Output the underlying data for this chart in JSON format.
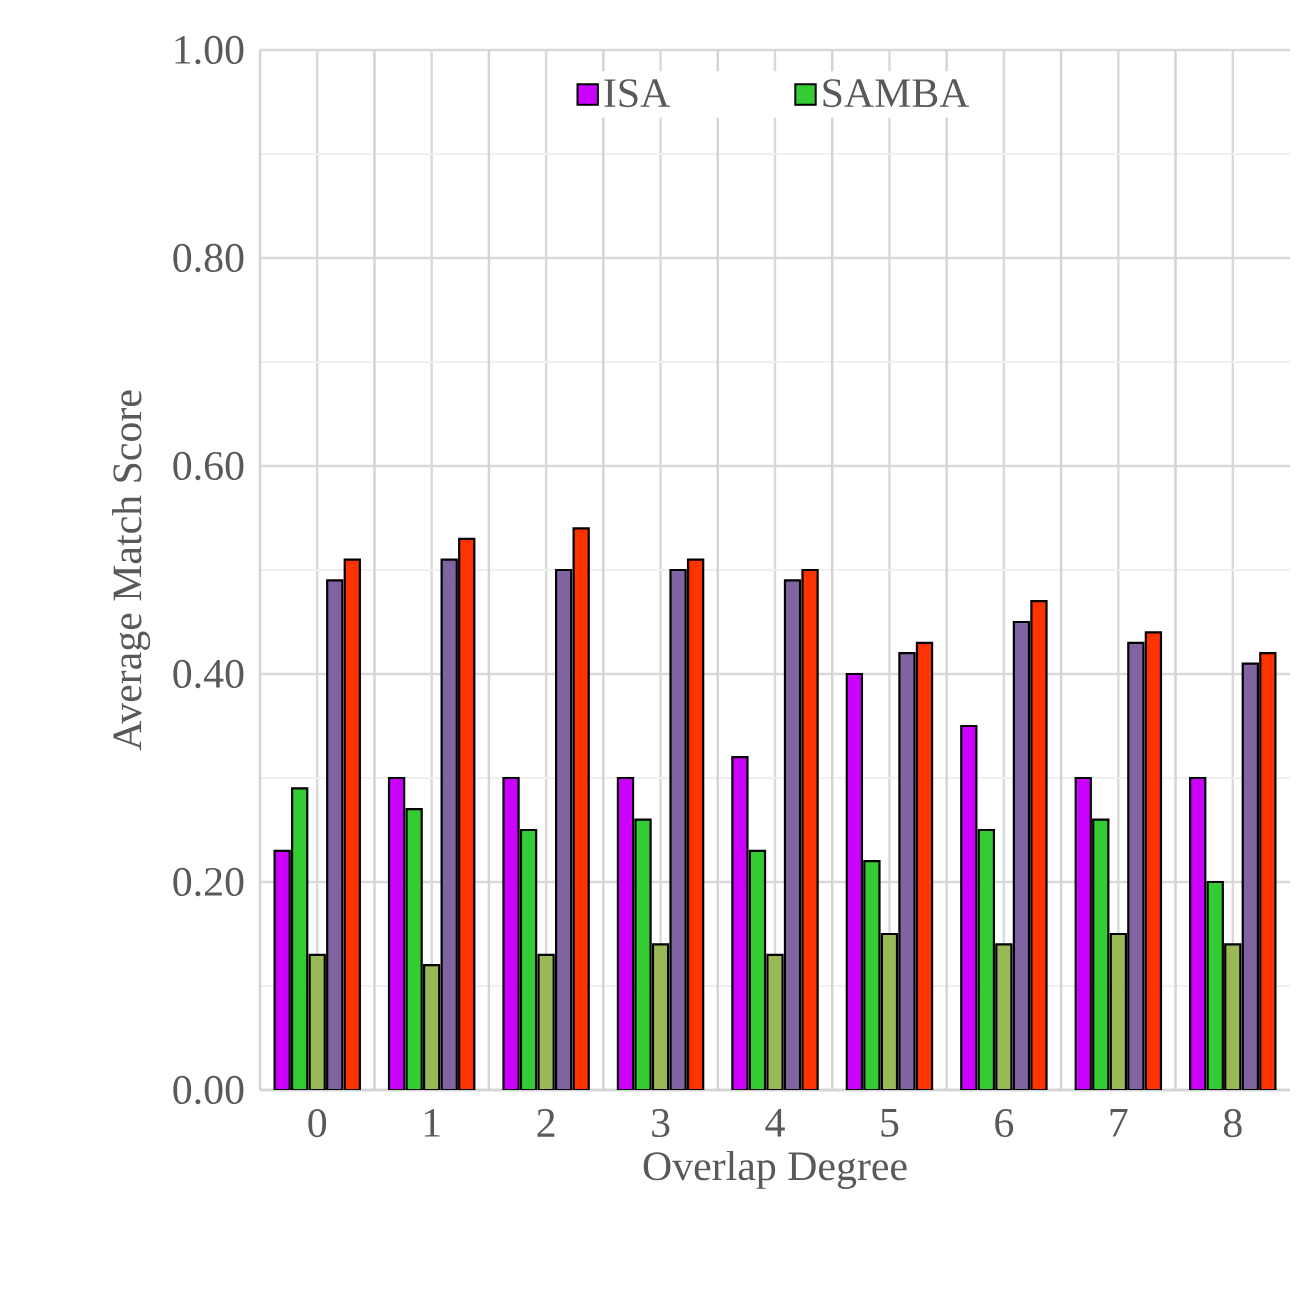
{
  "chart_data": {
    "type": "bar",
    "xlabel": "Overlap Degree",
    "ylabel": "Average Match Score",
    "categories": [
      "0",
      "1",
      "2",
      "3",
      "4",
      "5",
      "6",
      "7",
      "8"
    ],
    "series": [
      {
        "name": "ISA",
        "color": "#cc00ff",
        "values": [
          0.23,
          0.3,
          0.3,
          0.3,
          0.32,
          0.4,
          0.35,
          0.3,
          0.3
        ]
      },
      {
        "name": "SAMBA",
        "color": "#33cc33",
        "values": [
          0.29,
          0.27,
          0.25,
          0.26,
          0.23,
          0.22,
          0.25,
          0.26,
          0.2
        ]
      },
      {
        "color": "#99b956",
        "values": [
          0.13,
          0.12,
          0.13,
          0.14,
          0.13,
          0.15,
          0.14,
          0.15,
          0.14
        ]
      },
      {
        "color": "#8064a2",
        "values": [
          0.49,
          0.51,
          0.5,
          0.5,
          0.49,
          0.42,
          0.45,
          0.43,
          0.41
        ]
      },
      {
        "color": "#ff3300",
        "values": [
          0.51,
          0.53,
          0.54,
          0.51,
          0.5,
          0.43,
          0.47,
          0.44,
          0.42
        ]
      }
    ],
    "ylim": [
      0,
      1
    ],
    "yticks": [
      {
        "value": 0,
        "label": "0.00"
      },
      {
        "value": 0.2,
        "label": "0.20"
      },
      {
        "value": 0.4,
        "label": "0.40"
      },
      {
        "value": 0.6,
        "label": "0.60"
      },
      {
        "value": 0.8,
        "label": "0.80"
      },
      {
        "value": 1,
        "label": "1.00"
      }
    ],
    "grid": true,
    "legend": "top"
  }
}
